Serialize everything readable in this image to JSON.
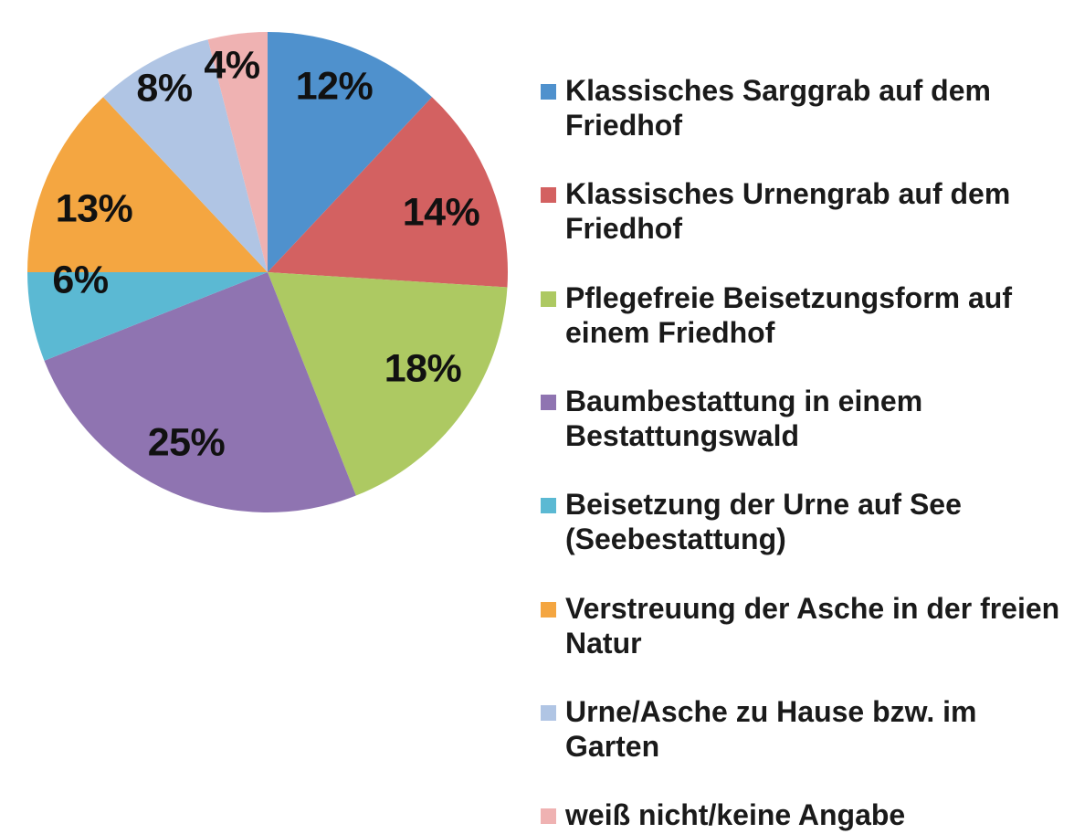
{
  "chart_data": {
    "type": "pie",
    "title": "",
    "start_angle_deg": 90,
    "direction": "clockwise",
    "categories": [
      "Klassisches Sarggrab auf dem Friedhof",
      "Klassisches Urnengrab auf dem Friedhof",
      "Pflegefreie Beisetzungsform auf einem Friedhof",
      "Baumbestattung in einem Bestattungswald",
      "Beisetzung der Urne auf See (Seebestattung)",
      "Verstreuung der Asche in der freien Natur",
      "Urne/Asche zu Hause bzw. im Garten",
      "weiß nicht/keine Angabe"
    ],
    "values": [
      12,
      14,
      18,
      25,
      6,
      13,
      8,
      4
    ],
    "data_labels": [
      "12%",
      "14%",
      "18%",
      "25%",
      "6%",
      "13%",
      "8%",
      "4%"
    ],
    "colors": [
      "#4f91cd",
      "#d36161",
      "#adc962",
      "#8f74b1",
      "#5bb9d3",
      "#f4a641",
      "#b0c5e4",
      "#efb2b2"
    ],
    "legend_position": "right",
    "unit": "%"
  },
  "legend": {
    "items": [
      {
        "label": "Klassisches Sarggrab auf dem Friedhof",
        "color": "#4f91cd"
      },
      {
        "label": "Klassisches Urnengrab auf dem Friedhof",
        "color": "#d36161"
      },
      {
        "label": "Pflegefreie Beisetzungsform auf einem Friedhof",
        "color": "#adc962"
      },
      {
        "label": "Baumbestattung in einem Bestattungswald",
        "color": "#8f74b1"
      },
      {
        "label": "Beisetzung der Urne auf See (Seebestattung)",
        "color": "#5bb9d3"
      },
      {
        "label": "Verstreuung der Asche in der freien Natur",
        "color": "#f4a641"
      },
      {
        "label": "Urne/Asche zu Hause bzw. im Garten",
        "color": "#b0c5e4"
      },
      {
        "label": "weiß nicht/keine Angabe",
        "color": "#efb2b2"
      }
    ]
  },
  "labels": {
    "l0": "12%",
    "l1": "14%",
    "l2": "18%",
    "l3": "25%",
    "l4": "6%",
    "l5": "13%",
    "l6": "8%",
    "l7": "4%"
  }
}
